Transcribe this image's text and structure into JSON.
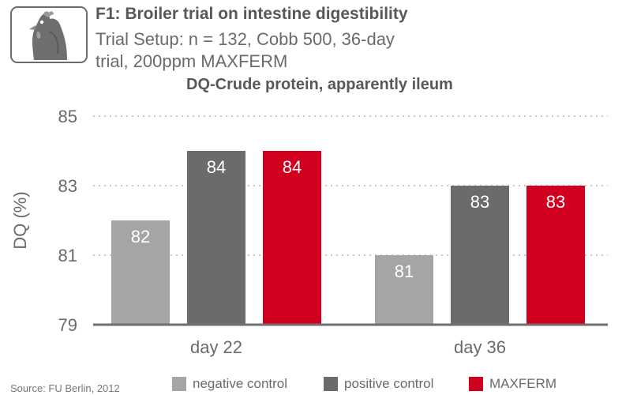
{
  "header": {
    "title": "F1: Broiler trial on intestine digestibility",
    "subtitle": "Trial Setup: n = 132, Cobb 500, 36-day trial, 200ppm MAXFERM",
    "icon": "chicken-icon"
  },
  "chart_data": {
    "type": "bar",
    "title": "DQ-Crude protein, apparently ileum",
    "xlabel": "",
    "ylabel": "DQ (%)",
    "ylim": [
      79,
      85
    ],
    "yticks": [
      79,
      81,
      83,
      85
    ],
    "grid": true,
    "categories": [
      "day 22",
      "day 36"
    ],
    "series": [
      {
        "name": "negative control",
        "values": [
          82,
          81
        ],
        "labels": [
          "82",
          "81"
        ],
        "color": "#a5a5a5",
        "label_color": "#ffffff"
      },
      {
        "name": "positive control",
        "values": [
          84,
          83
        ],
        "labels": [
          "84",
          "83"
        ],
        "color": "#6b6b6b",
        "label_color": "#ffffff"
      },
      {
        "name": "MAXFERM",
        "values": [
          84,
          83
        ],
        "labels": [
          "84",
          "83"
        ],
        "color": "#d1001f",
        "label_color": "#ffffff"
      }
    ],
    "legend_position": "bottom"
  },
  "footer": {
    "source": "Source: FU Berlin, 2012"
  },
  "colors": {
    "axis": "#6f6f6f",
    "grid": "#c8c8c8",
    "text": "#6a6a6a"
  }
}
